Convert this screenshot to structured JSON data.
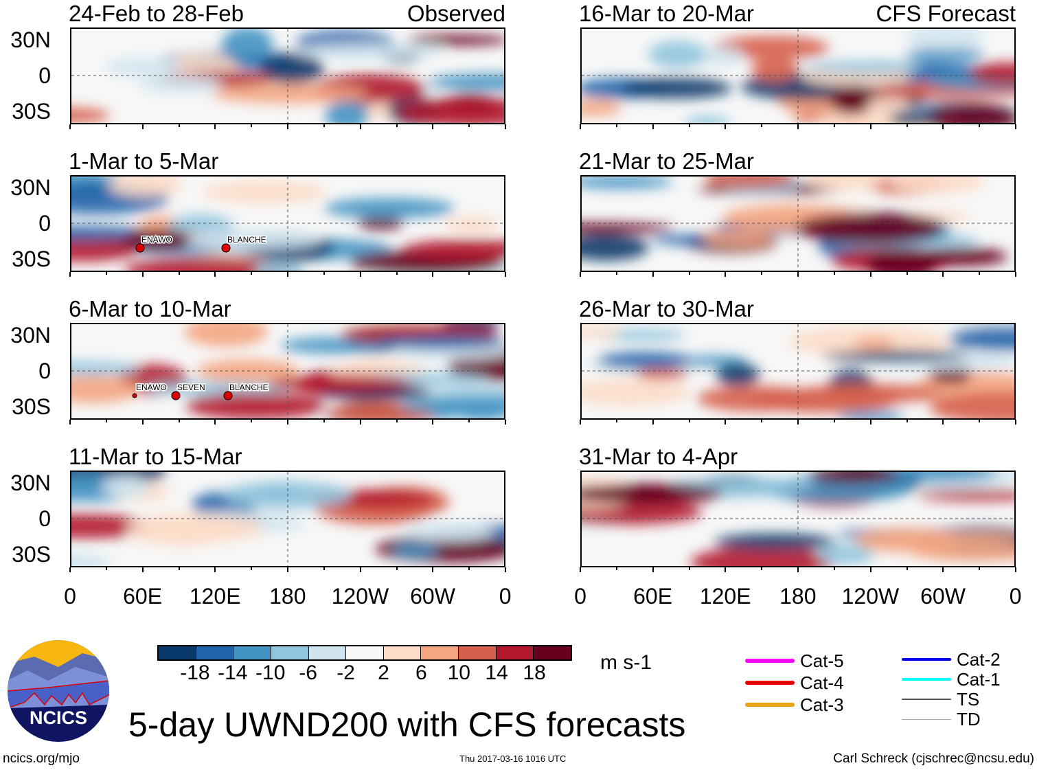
{
  "panels_left": [
    {
      "title": "24-Feb to 28-Feb",
      "tag": "Observed",
      "storms": []
    },
    {
      "title": "1-Mar to 5-Mar",
      "tag": "",
      "storms": [
        "ENAWO",
        "BLANCHE"
      ]
    },
    {
      "title": "6-Mar to 10-Mar",
      "tag": "",
      "storms": [
        "ENAWO",
        "SEVEN",
        "BLANCHE"
      ]
    },
    {
      "title": "11-Mar to 15-Mar",
      "tag": "",
      "storms": []
    }
  ],
  "panels_right": [
    {
      "title": "16-Mar to 20-Mar",
      "tag": "CFS Forecast",
      "storms": []
    },
    {
      "title": "21-Mar to 25-Mar",
      "tag": "",
      "storms": []
    },
    {
      "title": "26-Mar to 30-Mar",
      "tag": "",
      "storms": []
    },
    {
      "title": "31-Mar to 4-Apr",
      "tag": "",
      "storms": []
    }
  ],
  "lat_labels": [
    "30N",
    "0",
    "30S"
  ],
  "lon_labels": [
    "0",
    "60E",
    "120E",
    "180",
    "120W",
    "60W",
    "0"
  ],
  "colorbar": {
    "colors": [
      "#0a3a6c",
      "#2166ac",
      "#4393c3",
      "#92c5de",
      "#d1e5f0",
      "#f7f7f7",
      "#fddbc7",
      "#f4a582",
      "#d6604d",
      "#b2182b",
      "#67001f"
    ],
    "labels": [
      "-18",
      "-14",
      "-10",
      "-6",
      "-2",
      "2",
      "6",
      "10",
      "14",
      "18"
    ],
    "units": "m s-1"
  },
  "legend": [
    {
      "label": "Cat-5",
      "color": "#ff00ff"
    },
    {
      "label": "Cat-4",
      "color": "#ee0000"
    },
    {
      "label": "Cat-3",
      "color": "#e8a317"
    },
    {
      "label": "Cat-2",
      "color": "#0000ee"
    },
    {
      "label": "Cat-1",
      "color": "#00ffff"
    },
    {
      "label": "TS",
      "color": "#555555"
    },
    {
      "label": "TD",
      "color": "#aaaaaa"
    }
  ],
  "title": "5-day UWND200 with CFS forecasts",
  "logo_text": "NCICS",
  "footer": {
    "left": "ncics.org/mjo",
    "center": "Thu 2017-03-16 1016 UTC",
    "right": "Carl Schreck (cjschrec@ncsu.edu)"
  }
}
